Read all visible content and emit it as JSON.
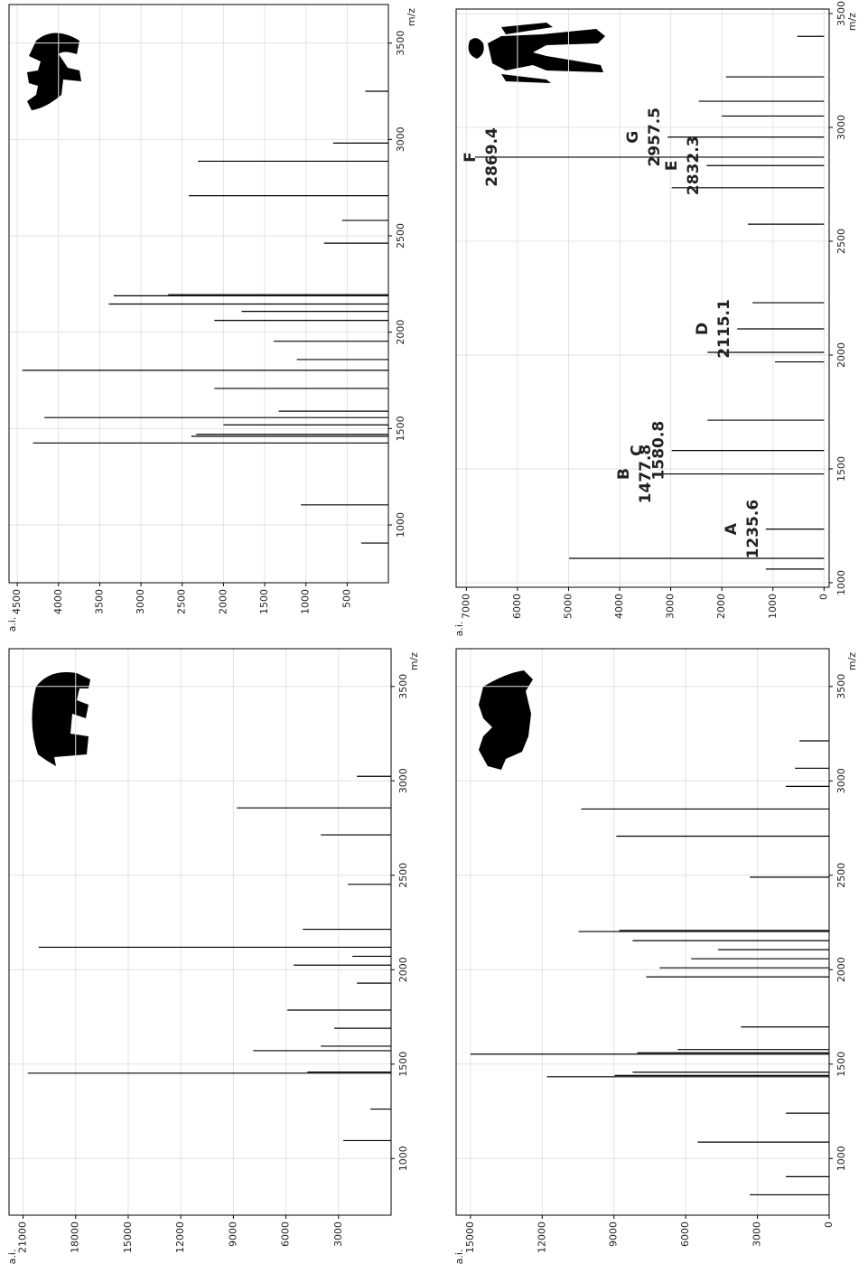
{
  "chart_data": [
    {
      "type": "stem",
      "xlabel": "m/z",
      "ylabel": "a.i.",
      "color": "#000000",
      "grid": true,
      "xlim": [
        700,
        3700
      ],
      "ylim": [
        0,
        4600
      ],
      "xticks": [
        1000,
        1500,
        2000,
        2500,
        3000,
        3500
      ],
      "yticks": [
        500,
        1000,
        1500,
        2000,
        2500,
        3000,
        3500,
        4000,
        4500
      ],
      "x": [
        906,
        1104,
        1425,
        1460,
        1470,
        1519,
        1557,
        1590,
        1708,
        1802,
        1858,
        1953,
        2061,
        2108,
        2146,
        2189,
        2195,
        2462,
        2580,
        2708,
        2887,
        2981,
        3250
      ],
      "values": [
        330,
        1060,
        4310,
        2390,
        2330,
        2000,
        4170,
        1330,
        2110,
        4440,
        1110,
        1390,
        2110,
        1780,
        3390,
        3330,
        2670,
        780,
        560,
        2420,
        2310,
        670,
        280
      ]
    },
    {
      "type": "stem",
      "xlabel": "m/z",
      "ylabel": "a.i.",
      "color": "#000000",
      "grid": true,
      "annotation_color": "#c0501f",
      "xlim": [
        980,
        3520
      ],
      "ylim": [
        -100,
        7200
      ],
      "xticks": [
        1000,
        1500,
        2000,
        2500,
        3000,
        3500
      ],
      "yticks": [
        0,
        1000,
        2000,
        3000,
        4000,
        5000,
        6000,
        7000
      ],
      "x": [
        1060,
        1107,
        1235.6,
        1477.8,
        1580.8,
        1714,
        1970,
        2012,
        2115.1,
        2230,
        2575,
        2735,
        2832.3,
        2869.4,
        2957.5,
        3050,
        3115,
        3222,
        3400
      ],
      "values": [
        1140,
        4990,
        1140,
        3240,
        2980,
        2280,
        960,
        2280,
        1700,
        1400,
        1490,
        2980,
        2300,
        6830,
        3060,
        2000,
        2450,
        1920,
        525
      ],
      "annotations": [
        {
          "label": "A",
          "x": 1235.6
        },
        {
          "label": "B",
          "x": 1477.8
        },
        {
          "label": "C",
          "x": 1580.8
        },
        {
          "label": "D",
          "x": 2115.1
        },
        {
          "label": "E",
          "x": 2832.3
        },
        {
          "label": "F",
          "x": 2869.4
        },
        {
          "label": "G",
          "x": 2957.5
        }
      ]
    },
    {
      "type": "stem",
      "xlabel": "m/z",
      "ylabel": "a.i.",
      "color": "#000000",
      "grid": true,
      "xlim": [
        700,
        3700
      ],
      "ylim": [
        0,
        21800
      ],
      "xticks": [
        1000,
        1500,
        2000,
        2500,
        3000,
        3500
      ],
      "yticks": [
        3000,
        6000,
        9000,
        12000,
        15000,
        18000,
        21000
      ],
      "x": [
        1095,
        1262,
        1452,
        1458,
        1571,
        1595,
        1690,
        1786,
        1929,
        2024,
        2071,
        2119,
        2214,
        2452,
        2714,
        2857,
        3024
      ],
      "values": [
        2730,
        1180,
        20730,
        4780,
        7870,
        4010,
        3240,
        5920,
        1950,
        5560,
        2210,
        20110,
        5040,
        2470,
        4010,
        8800,
        1950
      ]
    },
    {
      "type": "stem",
      "xlabel": "m/z",
      "ylabel": "a.i.",
      "color": "#000000",
      "grid": true,
      "xlim": [
        700,
        3700
      ],
      "ylim": [
        0,
        15600
      ],
      "xticks": [
        1000,
        1500,
        2000,
        2500,
        3000,
        3500
      ],
      "yticks": [
        0,
        3000,
        6000,
        9000,
        12000,
        15000
      ],
      "x": [
        808,
        904,
        1087,
        1240,
        1433,
        1440,
        1457,
        1553,
        1560,
        1577,
        1697,
        1962,
        2010,
        2058,
        2106,
        2154,
        2202,
        2208,
        2490,
        2707,
        2851,
        2971,
        3067,
        3212
      ],
      "values": [
        3320,
        1810,
        5500,
        1810,
        11800,
        8970,
        8220,
        15000,
        8030,
        6330,
        3690,
        7650,
        7090,
        5770,
        4640,
        8220,
        10480,
        8780,
        3320,
        8900,
        10370,
        1810,
        1430,
        1240
      ]
    }
  ]
}
